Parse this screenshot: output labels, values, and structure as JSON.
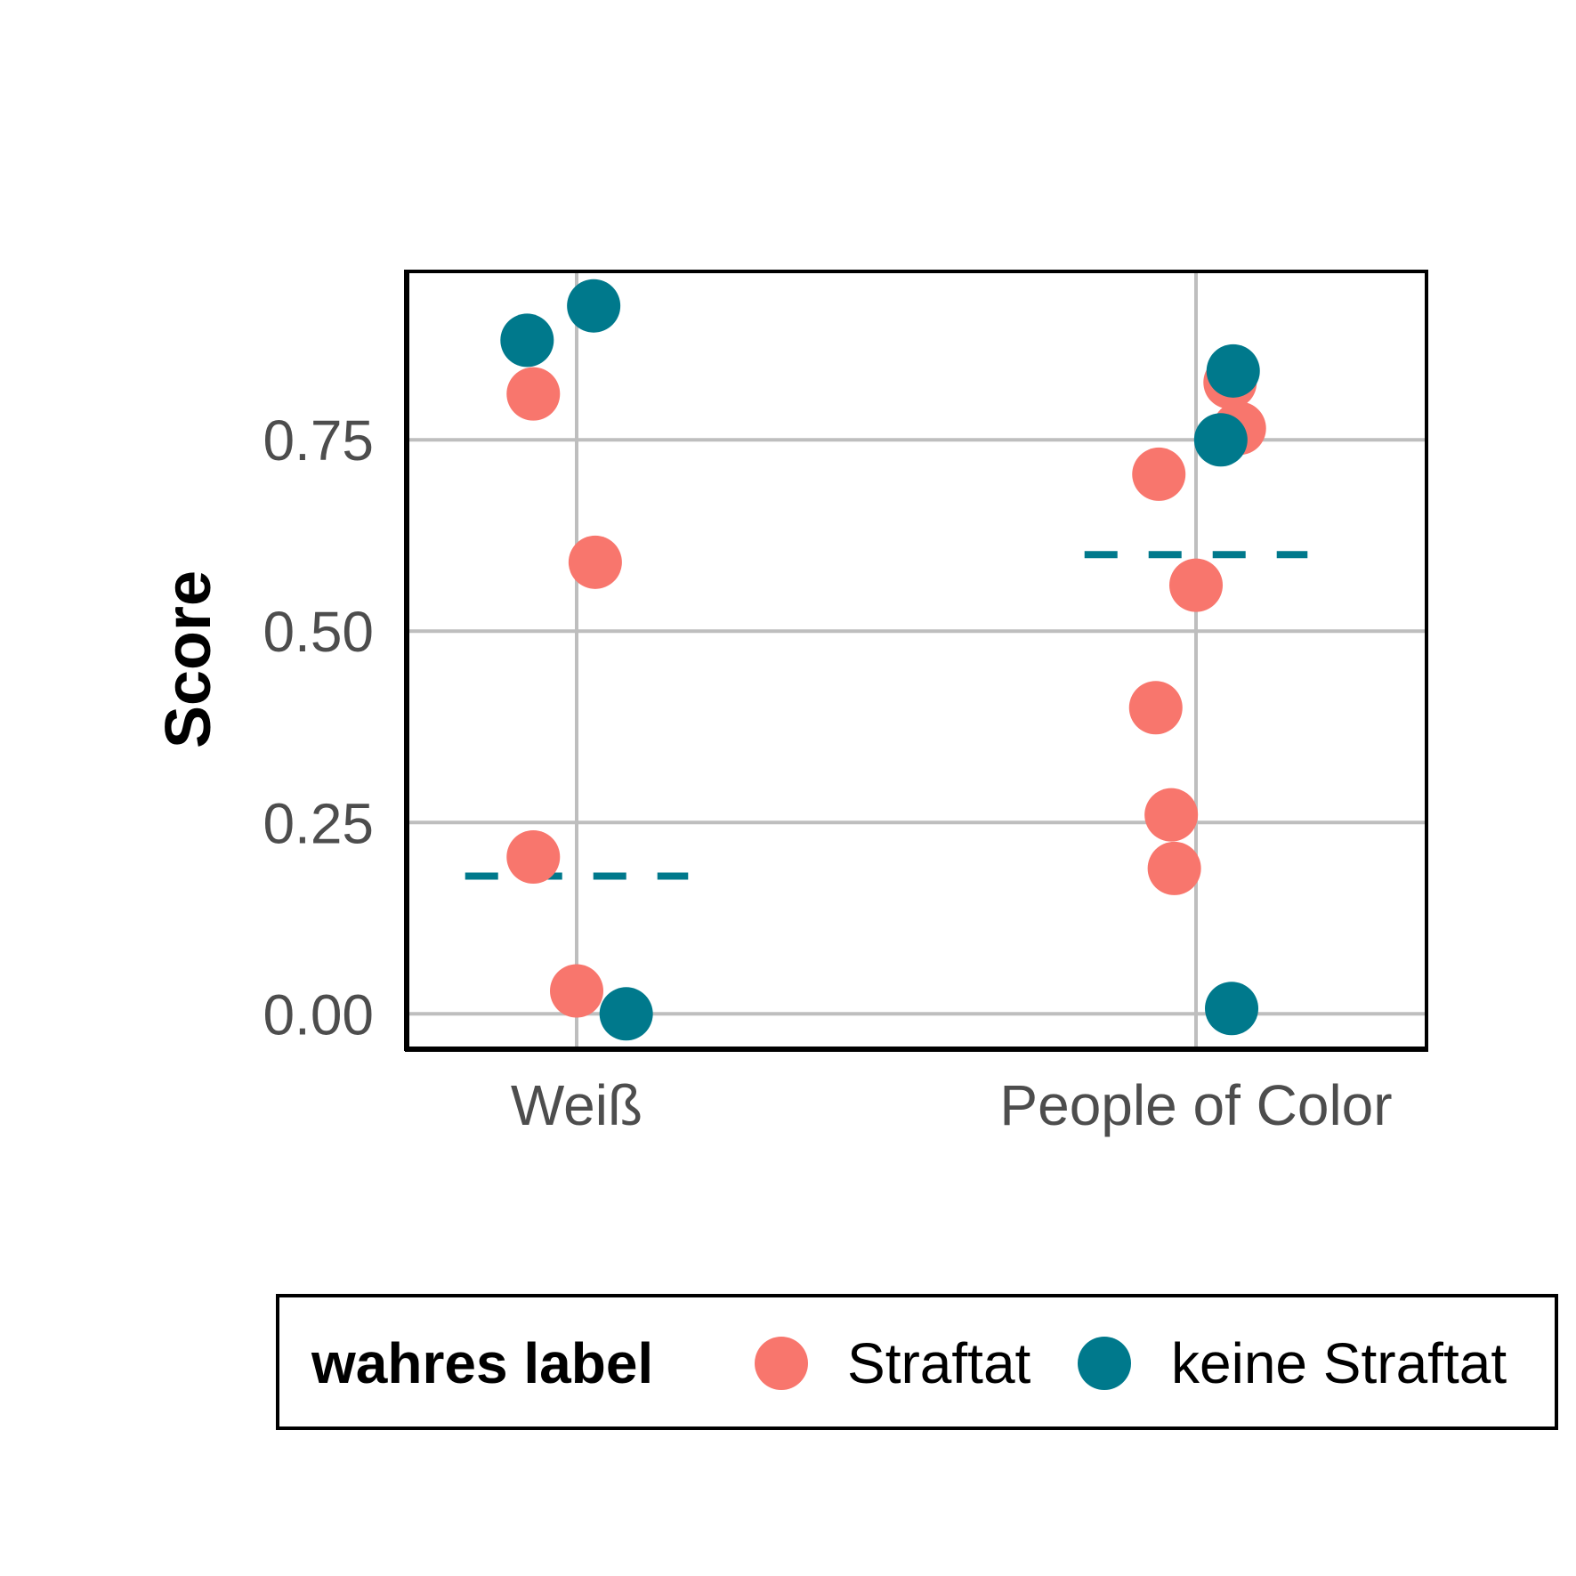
{
  "chart_data": {
    "type": "scatter",
    "title": "",
    "xlabel": "",
    "ylabel": "Score",
    "categories": [
      "Weiß",
      "People of Color"
    ],
    "yticks": [
      "0.00",
      "0.25",
      "0.50",
      "0.75"
    ],
    "ylim": [
      -0.045,
      0.97
    ],
    "grid": true,
    "legend": {
      "title": "wahres label",
      "placement": "bottom",
      "items": [
        {
          "label": "Straftat",
          "color": "#F8766D"
        },
        {
          "label": "keine Straftat",
          "color": "#00798C"
        }
      ]
    },
    "series": [
      {
        "name": "Straftat",
        "color": "#F8766D",
        "points": [
          {
            "category": "Weiß",
            "jitter": -0.14,
            "y": 0.81
          },
          {
            "category": "Weiß",
            "jitter": 0.06,
            "y": 0.59
          },
          {
            "category": "Weiß",
            "jitter": -0.14,
            "y": 0.205
          },
          {
            "category": "Weiß",
            "jitter": 0.0,
            "y": 0.03
          },
          {
            "category": "People of Color",
            "jitter": -0.12,
            "y": 0.705
          },
          {
            "category": "People of Color",
            "jitter": 0.0,
            "y": 0.56
          },
          {
            "category": "People of Color",
            "jitter": -0.13,
            "y": 0.4
          },
          {
            "category": "People of Color",
            "jitter": -0.08,
            "y": 0.26
          },
          {
            "category": "People of Color",
            "jitter": -0.07,
            "y": 0.19
          },
          {
            "category": "People of Color",
            "jitter": 0.11,
            "y": 0.825
          },
          {
            "category": "People of Color",
            "jitter": 0.14,
            "y": 0.765
          }
        ]
      },
      {
        "name": "keine Straftat",
        "color": "#00798C",
        "points": [
          {
            "category": "Weiß",
            "jitter": -0.16,
            "y": 0.88
          },
          {
            "category": "Weiß",
            "jitter": 0.055,
            "y": 0.925
          },
          {
            "category": "Weiß",
            "jitter": 0.16,
            "y": 0.0
          },
          {
            "category": "People of Color",
            "jitter": 0.12,
            "y": 0.84
          },
          {
            "category": "People of Color",
            "jitter": 0.08,
            "y": 0.75
          },
          {
            "category": "People of Color",
            "jitter": 0.115,
            "y": 0.007
          }
        ]
      }
    ],
    "threshold_lines": [
      {
        "category": "Weiß",
        "y": 0.18,
        "color": "#00798C",
        "style": "dashed"
      },
      {
        "category": "People of Color",
        "y": 0.6,
        "color": "#00798C",
        "style": "dashed"
      }
    ]
  }
}
